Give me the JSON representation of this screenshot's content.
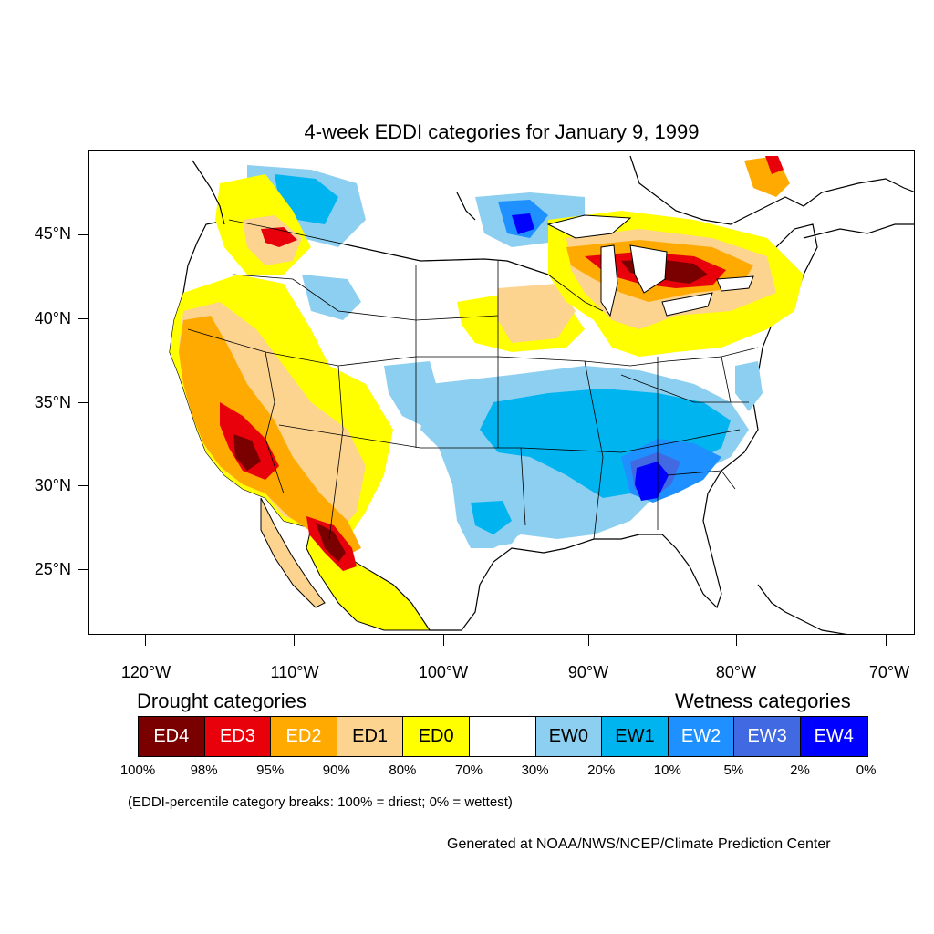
{
  "title": "4-week EDDI categories for January 9, 1999",
  "lat_labels": [
    "45°N",
    "40°N",
    "35°N",
    "30°N",
    "25°N"
  ],
  "lon_labels": [
    "120°W",
    "110°W",
    "100°W",
    "90°W",
    "80°W",
    "70°W"
  ],
  "legend": {
    "drought_heading": "Drought categories",
    "wetness_heading": "Wetness categories",
    "categories": [
      {
        "label": "ED4",
        "color": "#7a0000",
        "text_color": "#ffffff"
      },
      {
        "label": "ED3",
        "color": "#e8000b",
        "text_color": "#ffffff"
      },
      {
        "label": "ED2",
        "color": "#ffaa00",
        "text_color": "#ffffff"
      },
      {
        "label": "ED1",
        "color": "#fcd38f",
        "text_color": "#000000"
      },
      {
        "label": "ED0",
        "color": "#ffff00",
        "text_color": "#000000"
      },
      {
        "label": "",
        "color": "#ffffff",
        "text_color": "#000000"
      },
      {
        "label": "EW0",
        "color": "#8ccff0",
        "text_color": "#000000"
      },
      {
        "label": "EW1",
        "color": "#00b4f0",
        "text_color": "#000000"
      },
      {
        "label": "EW2",
        "color": "#1e90ff",
        "text_color": "#ffffff"
      },
      {
        "label": "EW3",
        "color": "#4169e1",
        "text_color": "#ffffff"
      },
      {
        "label": "EW4",
        "color": "#0000ff",
        "text_color": "#ffffff"
      }
    ],
    "breaks": [
      "100%",
      "98%",
      "95%",
      "90%",
      "80%",
      "70%",
      "30%",
      "20%",
      "10%",
      "5%",
      "2%",
      "0%"
    ]
  },
  "note": "(EDDI-percentile category breaks: 100% = driest; 0% = wettest)",
  "credit": "Generated at NOAA/NWS/NCEP/Climate Prediction Center"
}
